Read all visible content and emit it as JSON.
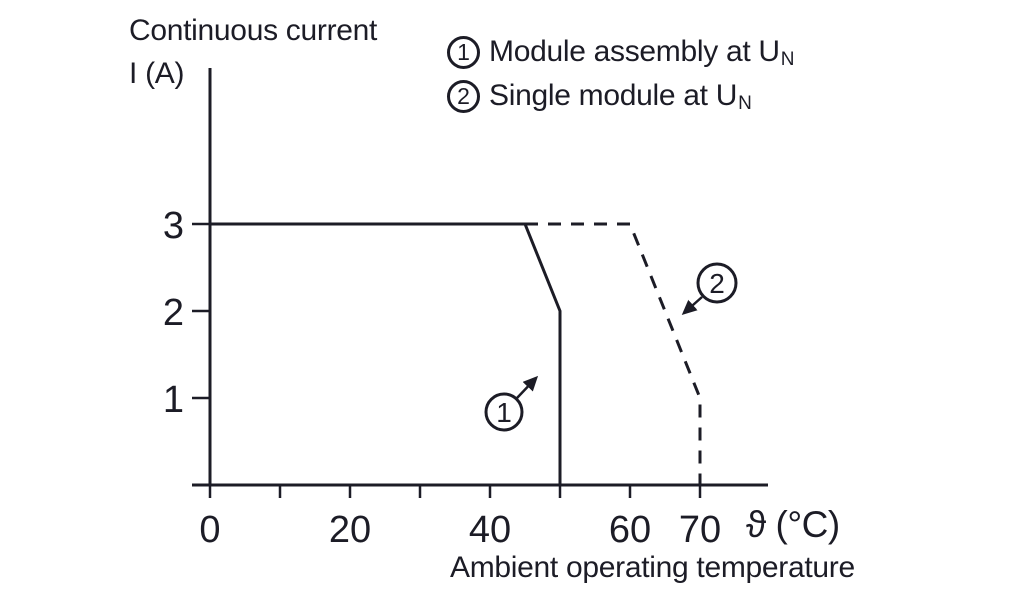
{
  "colors": {
    "ink": "#1c1c26",
    "background": "#ffffff"
  },
  "chart_data": {
    "type": "line",
    "title": "Continuous current",
    "ylabel": "I (A)",
    "xlabel": "Ambient operating temperature",
    "x_axis_symbol": "ϑ (°C)",
    "xlim": [
      0,
      80
    ],
    "ylim": [
      0,
      4.5
    ],
    "grid": false,
    "x_ticks": [
      0,
      10,
      20,
      30,
      40,
      50,
      60,
      70
    ],
    "x_labeled_ticks": [
      0,
      20,
      40,
      60,
      70
    ],
    "y_ticks": [
      1,
      2,
      3
    ],
    "series": [
      {
        "name": "Module assembly at UN",
        "marker": "1",
        "line_style": "solid",
        "points": [
          [
            0,
            3
          ],
          [
            45,
            3
          ],
          [
            50,
            2
          ],
          [
            50,
            0
          ]
        ]
      },
      {
        "name": "Single module at UN",
        "marker": "2",
        "line_style": "dashed",
        "points": [
          [
            45,
            3
          ],
          [
            60,
            3
          ],
          [
            70,
            1
          ],
          [
            70,
            0
          ]
        ]
      }
    ],
    "legend": [
      {
        "symbol": "1",
        "label": "Module assembly at U",
        "subscript": "N"
      },
      {
        "symbol": "2",
        "label": "Single module at U",
        "subscript": "N"
      }
    ],
    "legend_position": "top-right"
  }
}
